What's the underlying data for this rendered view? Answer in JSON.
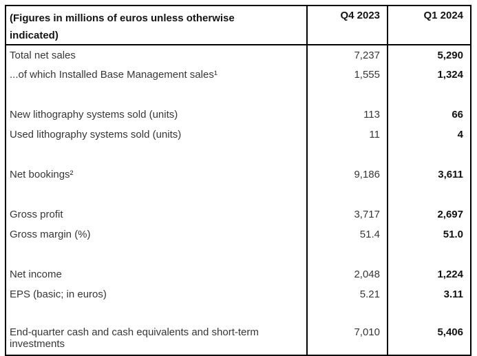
{
  "page": {
    "background_color": "#ffffff",
    "border_color": "#000000",
    "regular_text_color": "#363636",
    "bold_text_color": "#101010"
  },
  "table": {
    "header": {
      "label": "(Figures in millions of euros unless otherwise indicated)",
      "col_q4": "Q4 2023",
      "col_q1": "Q1 2024"
    },
    "rows": [
      {
        "label": "Total net sales",
        "q4": "7,237",
        "q1": "5,290"
      },
      {
        "label": "...of which Installed Base Management sales¹",
        "q4": "1,555",
        "q1": "1,324"
      },
      {
        "label": "New lithography systems sold (units)",
        "q4": "113",
        "q1": "66"
      },
      {
        "label": "Used lithography systems sold (units)",
        "q4": "11",
        "q1": "4"
      },
      {
        "label": "Net bookings²",
        "q4": "9,186",
        "q1": "3,611"
      },
      {
        "label": "Gross profit",
        "q4": "3,717",
        "q1": "2,697"
      },
      {
        "label": "Gross margin (%)",
        "q4": "51.4",
        "q1": "51.0"
      },
      {
        "label": "Net income",
        "q4": "2,048",
        "q1": "1,224"
      },
      {
        "label": "EPS (basic; in euros)",
        "q4": "5.21",
        "q1": "3.11"
      },
      {
        "label": "End-quarter cash and cash equivalents and short-term investments",
        "q4": "7,010",
        "q1": "5,406"
      }
    ]
  }
}
